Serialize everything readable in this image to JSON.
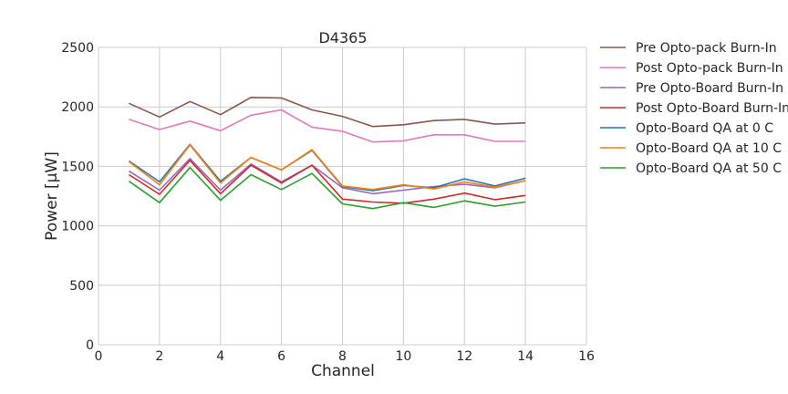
{
  "chart_data": {
    "type": "line",
    "title": "D4365",
    "xlabel": "Channel",
    "ylabel": "Power [μW]",
    "xlim": [
      0,
      16
    ],
    "ylim": [
      0,
      2500
    ],
    "xticks": [
      0,
      2,
      4,
      6,
      8,
      10,
      12,
      14,
      16
    ],
    "yticks": [
      0,
      500,
      1000,
      1500,
      2000,
      2500
    ],
    "grid": true,
    "legend_position": "outside-right",
    "x": [
      1,
      2,
      3,
      4,
      5,
      6,
      7,
      8,
      9,
      10,
      11,
      12,
      13,
      14
    ],
    "series": [
      {
        "name": "Pre Opto-pack Burn-In",
        "color": "#8c564b",
        "values": [
          2030,
          1915,
          2045,
          1935,
          2080,
          2075,
          1975,
          1920,
          1835,
          1850,
          1885,
          1895,
          1855,
          1865
        ]
      },
      {
        "name": "Post Opto-pack Burn-In",
        "color": "#e377c2",
        "values": [
          1895,
          1810,
          1880,
          1800,
          1930,
          1975,
          1830,
          1795,
          1705,
          1715,
          1765,
          1765,
          1710,
          1710
        ]
      },
      {
        "name": "Pre Opto-Board Burn-In",
        "color": "#9467bd",
        "values": [
          1460,
          1300,
          1565,
          1300,
          1520,
          1370,
          1510,
          1320,
          1270,
          1300,
          1330,
          1350,
          1320,
          1380
        ]
      },
      {
        "name": "Post Opto-Board Burn-In",
        "color": "#d62728",
        "values": [
          1430,
          1265,
          1550,
          1270,
          1510,
          1360,
          1510,
          1225,
          1200,
          1190,
          1225,
          1275,
          1220,
          1255
        ]
      },
      {
        "name": "Opto-Board QA at 0 C",
        "color": "#1f77b4",
        "values": [
          1545,
          1370,
          1685,
          1375,
          1575,
          1470,
          1635,
          1330,
          1295,
          1340,
          1320,
          1395,
          1335,
          1400
        ]
      },
      {
        "name": "Opto-Board QA at 10 C",
        "color": "#ff7f0e",
        "values": [
          1540,
          1345,
          1680,
          1360,
          1575,
          1470,
          1640,
          1335,
          1305,
          1345,
          1310,
          1370,
          1325,
          1380
        ]
      },
      {
        "name": "Opto-Board QA at 50 C",
        "color": "#2ca02c",
        "values": [
          1375,
          1195,
          1490,
          1215,
          1430,
          1305,
          1440,
          1185,
          1145,
          1195,
          1155,
          1210,
          1165,
          1200
        ]
      }
    ]
  }
}
